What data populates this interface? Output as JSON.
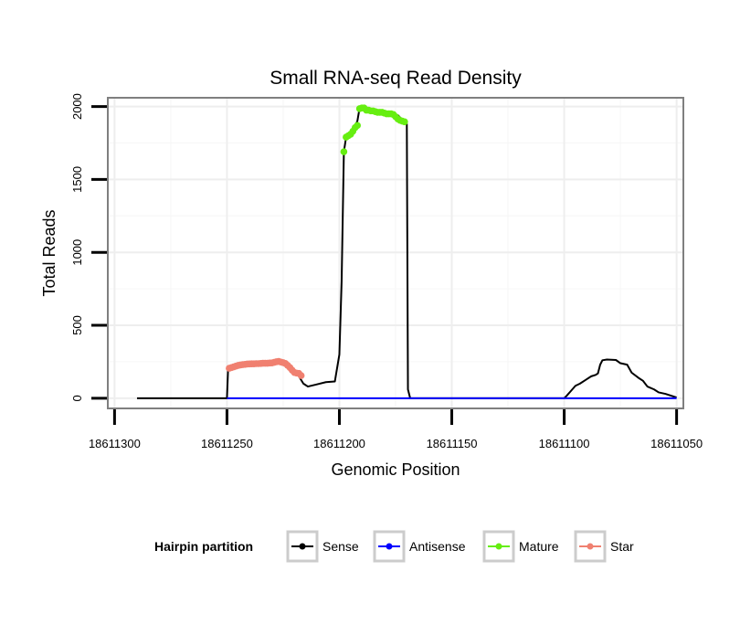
{
  "colors": {
    "sense": "#000000",
    "antisense": "#0000ff",
    "mature": "#66ee11",
    "star": "#f08070",
    "panel_border": "#7f7f7f",
    "grid_major": "#eeeeee",
    "grid_minor": "#f6f6f6",
    "legend_key_border": "#cccccc"
  },
  "chart_data": {
    "type": "line",
    "title": "Small RNA-seq Read Density",
    "xlabel": "Genomic Position",
    "ylabel": "Total Reads",
    "xlim": [
      18611303,
      18611047
    ],
    "x_reversed": true,
    "ylim": [
      -70,
      2060
    ],
    "x_ticks": [
      18611300,
      18611250,
      18611200,
      18611150,
      18611100,
      18611050
    ],
    "x_tick_labels": [
      "18611300",
      "18611250",
      "18611200",
      "18611150",
      "18611100",
      "18611050"
    ],
    "y_ticks": [
      0,
      500,
      1000,
      1500,
      2000
    ],
    "y_tick_labels": [
      "0",
      "500",
      "1000",
      "1500",
      "2000"
    ],
    "grid": true,
    "legend": {
      "title": "Hairpin partition",
      "position": "bottom",
      "entries": [
        {
          "key": "sense",
          "label": "Sense"
        },
        {
          "key": "antisense",
          "label": "Antisense"
        },
        {
          "key": "mature",
          "label": "Mature"
        },
        {
          "key": "star",
          "label": "Star"
        }
      ]
    },
    "series": [
      {
        "name": "Sense",
        "kind": "line",
        "points": [
          [
            18611290,
            0
          ],
          [
            18611250,
            0
          ],
          [
            18611249.5,
            200
          ],
          [
            18611245,
            215
          ],
          [
            18611240,
            225
          ],
          [
            18611235,
            230
          ],
          [
            18611230,
            238
          ],
          [
            18611227,
            245
          ],
          [
            18611224,
            240
          ],
          [
            18611222,
            225
          ],
          [
            18611221,
            195
          ],
          [
            18611219,
            175
          ],
          [
            18611218,
            150
          ],
          [
            18611216,
            100
          ],
          [
            18611214,
            80
          ],
          [
            18611210,
            95
          ],
          [
            18611206,
            110
          ],
          [
            18611202,
            115
          ],
          [
            18611200,
            300
          ],
          [
            18611199,
            800
          ],
          [
            18611198,
            1690
          ],
          [
            18611197,
            1790
          ],
          [
            18611195,
            1830
          ],
          [
            18611193,
            1870
          ],
          [
            18611192,
            1900
          ],
          [
            18611191,
            1990
          ],
          [
            18611188,
            1995
          ],
          [
            18611185,
            1975
          ],
          [
            18611182,
            1970
          ],
          [
            18611180,
            1960
          ],
          [
            18611178,
            1960
          ],
          [
            18611176,
            1955
          ],
          [
            18611174,
            1940
          ],
          [
            18611171,
            1895
          ],
          [
            18611170,
            1880
          ],
          [
            18611169.5,
            60
          ],
          [
            18611168.5,
            0
          ],
          [
            18611100,
            0
          ],
          [
            18611099,
            15
          ],
          [
            18611097,
            50
          ],
          [
            18611095,
            85
          ],
          [
            18611093,
            100
          ],
          [
            18611091,
            120
          ],
          [
            18611090,
            130
          ],
          [
            18611088,
            150
          ],
          [
            18611086,
            160
          ],
          [
            18611085,
            170
          ],
          [
            18611084,
            230
          ],
          [
            18611083,
            260
          ],
          [
            18611081,
            265
          ],
          [
            18611077,
            262
          ],
          [
            18611075,
            240
          ],
          [
            18611072,
            230
          ],
          [
            18611070,
            175
          ],
          [
            18611067,
            140
          ],
          [
            18611065,
            120
          ],
          [
            18611063,
            80
          ],
          [
            18611060,
            60
          ],
          [
            18611058,
            40
          ],
          [
            18611055,
            30
          ],
          [
            18611052,
            15
          ],
          [
            18611050,
            5
          ]
        ]
      },
      {
        "name": "Antisense",
        "kind": "line",
        "points": [
          [
            18611250,
            0
          ],
          [
            18611050,
            0
          ]
        ]
      },
      {
        "name": "Mature",
        "kind": "points",
        "points": [
          [
            18611198,
            1690
          ],
          [
            18611197,
            1790
          ],
          [
            18611196,
            1800
          ],
          [
            18611195,
            1810
          ],
          [
            18611194,
            1830
          ],
          [
            18611193,
            1855
          ],
          [
            18611192,
            1870
          ],
          [
            18611191,
            1985
          ],
          [
            18611190,
            1990
          ],
          [
            18611189,
            1990
          ],
          [
            18611188,
            1975
          ],
          [
            18611187,
            1975
          ],
          [
            18611186,
            1970
          ],
          [
            18611185,
            1970
          ],
          [
            18611184,
            1965
          ],
          [
            18611183,
            1960
          ],
          [
            18611182,
            1960
          ],
          [
            18611181,
            1960
          ],
          [
            18611180,
            1955
          ],
          [
            18611179,
            1950
          ],
          [
            18611178,
            1950
          ],
          [
            18611177,
            1950
          ],
          [
            18611176,
            1945
          ],
          [
            18611175,
            1930
          ],
          [
            18611174,
            1915
          ],
          [
            18611173,
            1905
          ],
          [
            18611172,
            1900
          ],
          [
            18611171,
            1895
          ]
        ]
      },
      {
        "name": "Star",
        "kind": "points",
        "points": [
          [
            18611249,
            205
          ],
          [
            18611248,
            210
          ],
          [
            18611247,
            215
          ],
          [
            18611246,
            220
          ],
          [
            18611245,
            225
          ],
          [
            18611244,
            228
          ],
          [
            18611243,
            230
          ],
          [
            18611242,
            232
          ],
          [
            18611241,
            234
          ],
          [
            18611240,
            235
          ],
          [
            18611239,
            236
          ],
          [
            18611238,
            236
          ],
          [
            18611237,
            237
          ],
          [
            18611236,
            237
          ],
          [
            18611235,
            238
          ],
          [
            18611234,
            240
          ],
          [
            18611233,
            240
          ],
          [
            18611232,
            240
          ],
          [
            18611231,
            241
          ],
          [
            18611230,
            242
          ],
          [
            18611229,
            246
          ],
          [
            18611228,
            250
          ],
          [
            18611227,
            252
          ],
          [
            18611226,
            248
          ],
          [
            18611225,
            244
          ],
          [
            18611224,
            238
          ],
          [
            18611223,
            225
          ],
          [
            18611222,
            210
          ],
          [
            18611221,
            192
          ],
          [
            18611220,
            176
          ],
          [
            18611219,
            172
          ],
          [
            18611218,
            170
          ],
          [
            18611217,
            155
          ]
        ]
      }
    ]
  }
}
